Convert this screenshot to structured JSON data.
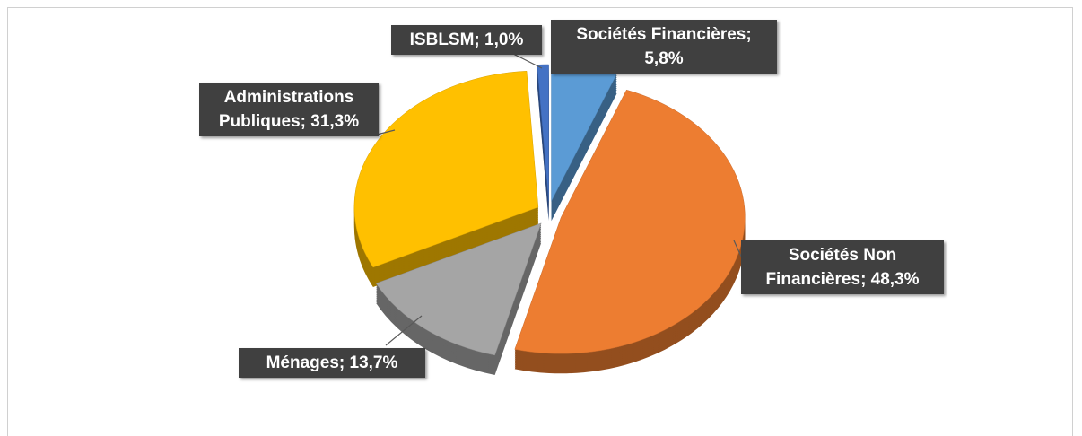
{
  "chart_data": {
    "type": "pie",
    "categories": [
      "Sociétés Financières",
      "Sociétés Non Financières",
      "Ménages",
      "Administrations Publiques",
      "ISBLSM"
    ],
    "values": [
      5.8,
      48.3,
      13.7,
      31.3,
      1.0
    ],
    "value_labels": [
      "5,8%",
      "48,3%",
      "13,7%",
      "31,3%",
      "1,0%"
    ],
    "label_separator": ";",
    "colors": [
      "#5b9bd5",
      "#ed7d31",
      "#a5a5a5",
      "#ffc000",
      "#4472c4"
    ]
  }
}
